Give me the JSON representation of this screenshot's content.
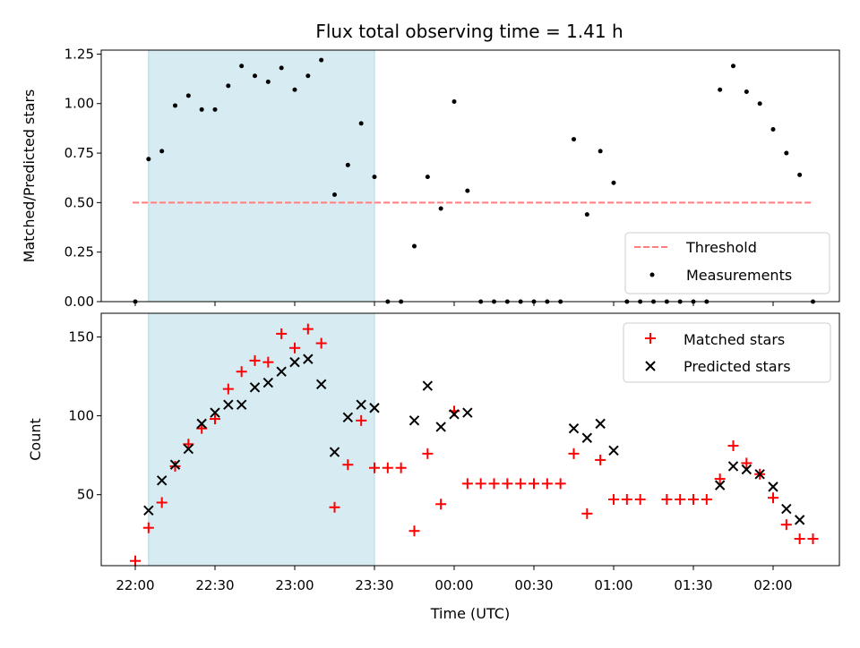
{
  "chart_data": [
    {
      "type": "scatter",
      "title": "Flux total observing time = 1.41 h",
      "ylabel": "Matched/Predicted stars",
      "xlabel": "",
      "ylim": [
        0,
        1.27
      ],
      "yticks": [
        "0.00",
        "0.25",
        "0.50",
        "0.75",
        "1.00",
        "1.25"
      ],
      "shaded_interval": [
        "22:05",
        "23:30"
      ],
      "shaded_color": "#add8e6",
      "threshold": {
        "name": "Threshold",
        "value": 0.5,
        "color": "#ff7f7f"
      },
      "legend_placement": "lower right",
      "series": [
        {
          "name": "Measurements",
          "color": "#000000",
          "x": [
            "22:00",
            "22:05",
            "22:10",
            "22:15",
            "22:20",
            "22:25",
            "22:30",
            "22:35",
            "22:40",
            "22:45",
            "22:50",
            "22:55",
            "23:00",
            "23:05",
            "23:10",
            "23:15",
            "23:20",
            "23:25",
            "23:30",
            "23:35",
            "23:40",
            "23:45",
            "23:50",
            "23:55",
            "00:00",
            "00:05",
            "00:10",
            "00:15",
            "00:20",
            "00:25",
            "00:30",
            "00:35",
            "00:40",
            "00:45",
            "00:50",
            "00:55",
            "01:00",
            "01:05",
            "01:10",
            "01:15",
            "01:20",
            "01:25",
            "01:30",
            "01:35",
            "01:40",
            "01:45",
            "01:50",
            "01:55",
            "02:00",
            "02:05",
            "02:10",
            "02:15"
          ],
          "y": [
            0,
            0.72,
            0.76,
            0.99,
            1.04,
            0.97,
            0.97,
            1.09,
            1.19,
            1.14,
            1.11,
            1.18,
            1.07,
            1.14,
            1.22,
            0.54,
            0.69,
            0.9,
            0.63,
            0,
            0,
            0.28,
            0.63,
            0.47,
            1.01,
            0.56,
            0,
            0,
            0,
            0,
            0,
            0,
            0,
            0.82,
            0.44,
            0.76,
            0.6,
            0,
            0,
            0,
            0,
            0,
            0,
            0,
            1.07,
            1.19,
            1.06,
            1.0,
            0.87,
            0.75,
            0.64,
            0
          ]
        }
      ]
    },
    {
      "type": "scatter",
      "title": "",
      "xlabel": "Time (UTC)",
      "ylabel": "Count",
      "ylim": [
        5,
        165
      ],
      "yticks": [
        "50",
        "100",
        "150"
      ],
      "xticks": [
        "22:00",
        "22:30",
        "23:00",
        "23:30",
        "00:00",
        "00:30",
        "01:00",
        "01:30",
        "02:00"
      ],
      "shaded_interval": [
        "22:05",
        "23:30"
      ],
      "legend_placement": "upper right",
      "series": [
        {
          "name": "Matched stars",
          "marker": "+",
          "color": "#ff0000",
          "x": [
            "22:00",
            "22:05",
            "22:10",
            "22:15",
            "22:20",
            "22:25",
            "22:30",
            "22:35",
            "22:40",
            "22:45",
            "22:50",
            "22:55",
            "23:00",
            "23:05",
            "23:10",
            "23:15",
            "23:20",
            "23:25",
            "23:30",
            "23:35",
            "23:40",
            "23:45",
            "23:50",
            "23:55",
            "00:00",
            "00:05",
            "00:10",
            "00:15",
            "00:20",
            "00:25",
            "00:30",
            "00:35",
            "00:40",
            "00:45",
            "00:50",
            "00:55",
            "01:00",
            "01:05",
            "01:10",
            "01:20",
            "01:25",
            "01:30",
            "01:35",
            "01:40",
            "01:45",
            "01:50",
            "01:55",
            "02:00",
            "02:05",
            "02:10",
            "02:15"
          ],
          "y": [
            8,
            29,
            45,
            68,
            82,
            92,
            98,
            117,
            128,
            135,
            134,
            152,
            143,
            155,
            146,
            42,
            69,
            97,
            67,
            67,
            67,
            27,
            76,
            44,
            103,
            57,
            57,
            57,
            57,
            57,
            57,
            57,
            57,
            76,
            38,
            72,
            47,
            47,
            47,
            47,
            47,
            47,
            47,
            60,
            81,
            70,
            63,
            48,
            31,
            22,
            22
          ]
        },
        {
          "name": "Predicted stars",
          "marker": "x",
          "color": "#000000",
          "x": [
            "22:05",
            "22:10",
            "22:15",
            "22:20",
            "22:25",
            "22:30",
            "22:35",
            "22:40",
            "22:45",
            "22:50",
            "22:55",
            "23:00",
            "23:05",
            "23:10",
            "23:15",
            "23:20",
            "23:25",
            "23:30",
            "23:45",
            "23:50",
            "23:55",
            "00:00",
            "00:05",
            "00:45",
            "00:50",
            "00:55",
            "01:00",
            "01:40",
            "01:45",
            "01:50",
            "01:55",
            "02:00",
            "02:05",
            "02:10"
          ],
          "y": [
            40,
            59,
            69,
            79,
            95,
            102,
            107,
            107,
            118,
            121,
            128,
            134,
            136,
            120,
            77,
            99,
            107,
            105,
            97,
            119,
            93,
            101,
            102,
            92,
            86,
            95,
            78,
            56,
            68,
            66,
            63,
            55,
            41,
            34
          ]
        }
      ]
    }
  ]
}
